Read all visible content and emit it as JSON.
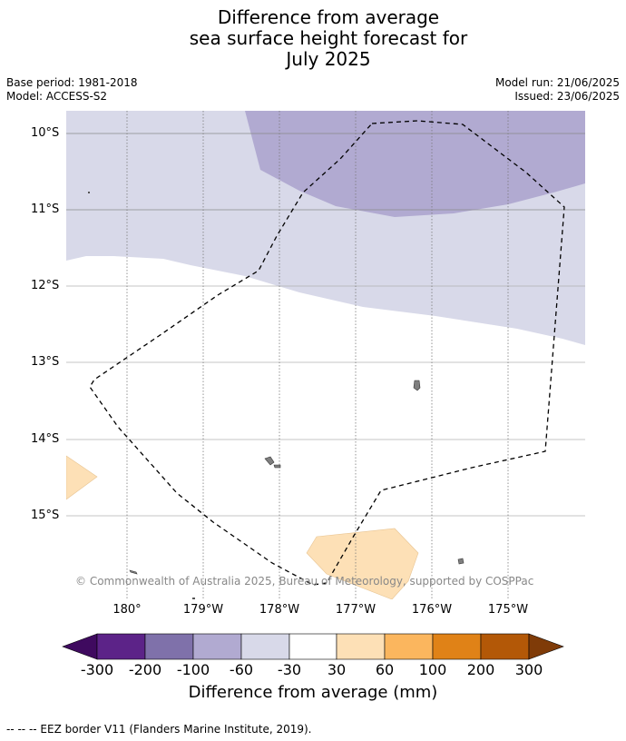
{
  "header": {
    "title_lines": [
      "Difference from average",
      "sea surface height forecast for",
      "July 2025"
    ],
    "base_period": "Base period: 1981-2018",
    "model": "Model: ACCESS-S2",
    "model_run": "Model run: 21/06/2025",
    "issued": "Issued: 23/06/2025"
  },
  "map": {
    "lat_labels": [
      "10°S",
      "11°S",
      "12°S",
      "13°S",
      "14°S",
      "15°S"
    ],
    "lon_labels": [
      "180°",
      "179°W",
      "178°W",
      "177°W",
      "176°W",
      "175°W"
    ],
    "copyright": "© Commonwealth of Australia 2025, Bureau of Meteorology, supported by COSPPac",
    "colors": {
      "band_neg30_neg60": "#d8d9e9",
      "band_neg60_neg100": "#b1aad1",
      "band_30_60": "#fde0b6",
      "land": "#7f7f7f",
      "eez_border": "#000000"
    }
  },
  "colorbar": {
    "tick_labels": [
      "-300",
      "-200",
      "-100",
      "-60",
      "-30",
      "30",
      "60",
      "100",
      "200",
      "300"
    ],
    "colors": [
      "#3f0a5f",
      "#5c2388",
      "#7f71aa",
      "#b1aad1",
      "#d8d9e9",
      "#ffffff",
      "#fde0b6",
      "#fbb65e",
      "#e08217",
      "#b35807",
      "#7f3b08"
    ],
    "title": "Difference from average (mm)"
  },
  "footnote": "--  --  -- EEZ border V11 (Flanders Marine Institute, 2019)."
}
